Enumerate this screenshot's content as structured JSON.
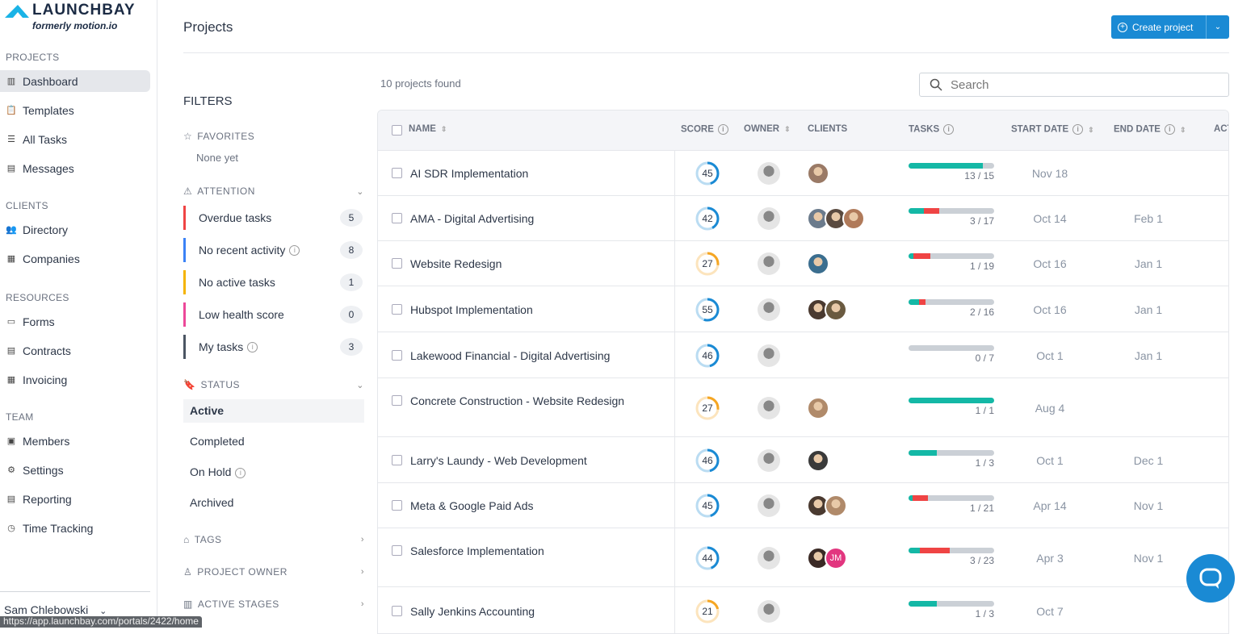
{
  "logo": {
    "brand": "LAUNCHBAY",
    "tagline": "formerly motion.io"
  },
  "sidebar": {
    "sections": [
      {
        "label": "PROJECTS",
        "items": [
          {
            "label": "Dashboard",
            "icon": "board-icon",
            "active": true
          },
          {
            "label": "Templates",
            "icon": "clipboard-icon"
          },
          {
            "label": "All Tasks",
            "icon": "list-icon"
          },
          {
            "label": "Messages",
            "icon": "message-icon"
          }
        ]
      },
      {
        "label": "CLIENTS",
        "items": [
          {
            "label": "Directory",
            "icon": "users-icon"
          },
          {
            "label": "Companies",
            "icon": "building-icon"
          }
        ]
      },
      {
        "label": "RESOURCES",
        "items": [
          {
            "label": "Forms",
            "icon": "form-icon"
          },
          {
            "label": "Contracts",
            "icon": "document-icon"
          },
          {
            "label": "Invoicing",
            "icon": "invoice-icon"
          }
        ]
      },
      {
        "label": "TEAM",
        "items": [
          {
            "label": "Members",
            "icon": "member-icon"
          },
          {
            "label": "Settings",
            "icon": "gear-icon"
          },
          {
            "label": "Reporting",
            "icon": "report-icon"
          },
          {
            "label": "Time Tracking",
            "icon": "clock-icon"
          }
        ]
      }
    ],
    "user": "Sam Chlebowski"
  },
  "status_url": "https://app.launchbay.com/portals/2422/home",
  "header": {
    "title": "Projects",
    "create_label": "Create project"
  },
  "filters": {
    "title": "FILTERS",
    "favorites": {
      "label": "FAVORITES",
      "empty": "None yet"
    },
    "attention": {
      "label": "ATTENTION",
      "items": [
        {
          "label": "Overdue tasks",
          "count": "5",
          "color": "#ef4444",
          "info": false
        },
        {
          "label": "No recent activity",
          "count": "8",
          "color": "#3b82f6",
          "info": true
        },
        {
          "label": "No active tasks",
          "count": "1",
          "color": "#f5b400",
          "info": false
        },
        {
          "label": "Low health score",
          "count": "0",
          "color": "#ec4899",
          "info": false
        },
        {
          "label": "My tasks",
          "count": "3",
          "color": "#4b5563",
          "info": true
        }
      ]
    },
    "status": {
      "label": "STATUS",
      "items": [
        {
          "label": "Active",
          "selected": true
        },
        {
          "label": "Completed"
        },
        {
          "label": "On Hold",
          "info": true
        },
        {
          "label": "Archived"
        }
      ]
    },
    "tags": "TAGS",
    "project_owner": "PROJECT OWNER",
    "active_stages": "ACTIVE STAGES"
  },
  "results": {
    "count_text": "10 projects found",
    "search_placeholder": "Search"
  },
  "table": {
    "columns": [
      "NAME",
      "SCORE",
      "OWNER",
      "CLIENTS",
      "TASKS",
      "START DATE",
      "END DATE",
      "ACT"
    ],
    "rows": [
      {
        "name": "AI SDR Implementation",
        "score": 45,
        "clients": [
          "#9a7a66"
        ],
        "done": 13,
        "total": 15,
        "overdue_pct": 0,
        "tasks": "13 / 15",
        "start": "Nov 18",
        "end": ""
      },
      {
        "name": "AMA - Digital Advertising",
        "score": 42,
        "clients": [
          "#6b7b8c",
          "#5a4a3f",
          "#b07a5a"
        ],
        "done": 3,
        "total": 17,
        "overdue_pct": 18,
        "tasks": "3 / 17",
        "start": "Oct 14",
        "end": "Feb 1"
      },
      {
        "name": "Website Redesign",
        "score": 27,
        "clients": [
          "#3b6e8f"
        ],
        "done": 1,
        "total": 19,
        "overdue_pct": 20,
        "tasks": "1 / 19",
        "start": "Oct 16",
        "end": "Jan 1"
      },
      {
        "name": "Hubspot Implementation",
        "score": 55,
        "clients": [
          "#4a3a30",
          "#6a5a40"
        ],
        "done": 2,
        "total": 16,
        "overdue_pct": 7,
        "tasks": "2 / 16",
        "start": "Oct 16",
        "end": "Jan 1"
      },
      {
        "name": "Lakewood Financial - Digital Advertising",
        "score": 46,
        "clients": [],
        "done": 0,
        "total": 7,
        "overdue_pct": 0,
        "tasks": "0 / 7",
        "start": "Oct 1",
        "end": "Jan 1"
      },
      {
        "name": "Concrete Construction - Website Redesign",
        "score": 27,
        "clients": [
          "#b08a6a"
        ],
        "done": 1,
        "total": 1,
        "overdue_pct": 0,
        "tasks": "1 / 1",
        "start": "Aug 4",
        "end": ""
      },
      {
        "name": "Larry's Laundy - Web Development",
        "score": 46,
        "clients": [
          "#3a3a3a"
        ],
        "done": 1,
        "total": 3,
        "overdue_pct": 0,
        "tasks": "1 / 3",
        "start": "Oct 1",
        "end": "Dec 1"
      },
      {
        "name": "Meta & Google Paid Ads",
        "score": 45,
        "clients": [
          "#4a3a30",
          "#b08a6a"
        ],
        "done": 1,
        "total": 21,
        "overdue_pct": 18,
        "tasks": "1 / 21",
        "start": "Apr 14",
        "end": "Nov 1"
      },
      {
        "name": "Salesforce Implementation",
        "score": 44,
        "clients": [
          "#3a2a25"
        ],
        "initials": "JM",
        "done": 3,
        "total": 23,
        "overdue_pct": 35,
        "tasks": "3 / 23",
        "start": "Apr 3",
        "end": "Nov 1"
      },
      {
        "name": "Sally Jenkins Accounting",
        "score": 21,
        "clients": [],
        "done": 1,
        "total": 3,
        "overdue_pct": 0,
        "tasks": "1 / 3",
        "start": "Oct 7",
        "end": ""
      }
    ]
  },
  "colors": {
    "accent": "#1a8ad4",
    "done": "#14b8a6",
    "overdue": "#ef4444",
    "score_high": "#1a8ad4",
    "score_low": "#f5a623",
    "initials_avatar": "#e2367f"
  }
}
